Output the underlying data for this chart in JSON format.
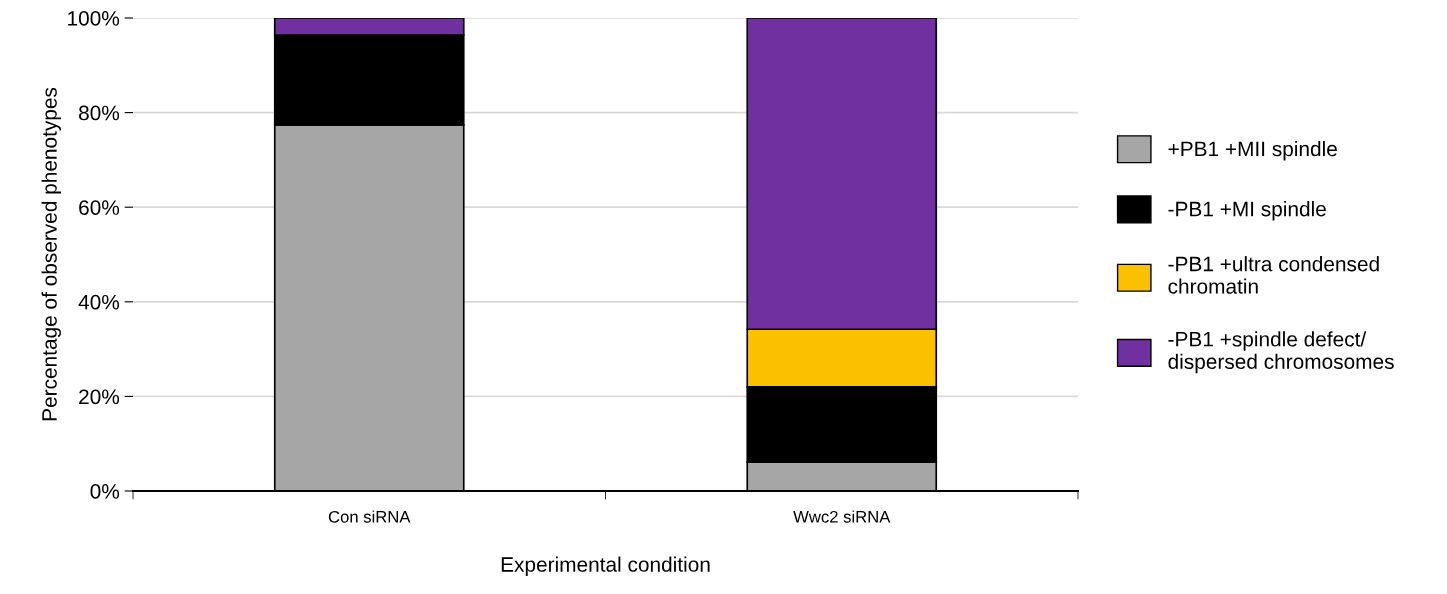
{
  "chart_data": {
    "type": "bar",
    "stacked": true,
    "xlabel": "Experimental condition",
    "ylabel": "Percentage of observed phenotypes",
    "categories": [
      "Con siRNA",
      "Wwc2 siRNA"
    ],
    "series": [
      {
        "name": "+PB1 +MII spindle",
        "color": "#a6a6a6",
        "values": [
          77.4,
          6.1
        ]
      },
      {
        "name": "-PB1 +MI spindle",
        "color": "#000000",
        "values": [
          19.0,
          15.9
        ]
      },
      {
        "name": "-PB1 +ultra condensed\nchromatin",
        "color": "#fbc000",
        "values": [
          0,
          12.2
        ]
      },
      {
        "name": "-PB1 +spindle defect/\ndispersed chromosomes",
        "color": "#7030a0",
        "values": [
          3.6,
          65.8
        ]
      }
    ],
    "ylim": [
      0,
      100
    ],
    "yticks": [
      {
        "value": 0,
        "label": "0%"
      },
      {
        "value": 20,
        "label": "20%"
      },
      {
        "value": 40,
        "label": "40%"
      },
      {
        "value": 60,
        "label": "60%"
      },
      {
        "value": 80,
        "label": "80%"
      },
      {
        "value": 100,
        "label": "100%"
      }
    ],
    "grid": "y",
    "legend": "right"
  }
}
